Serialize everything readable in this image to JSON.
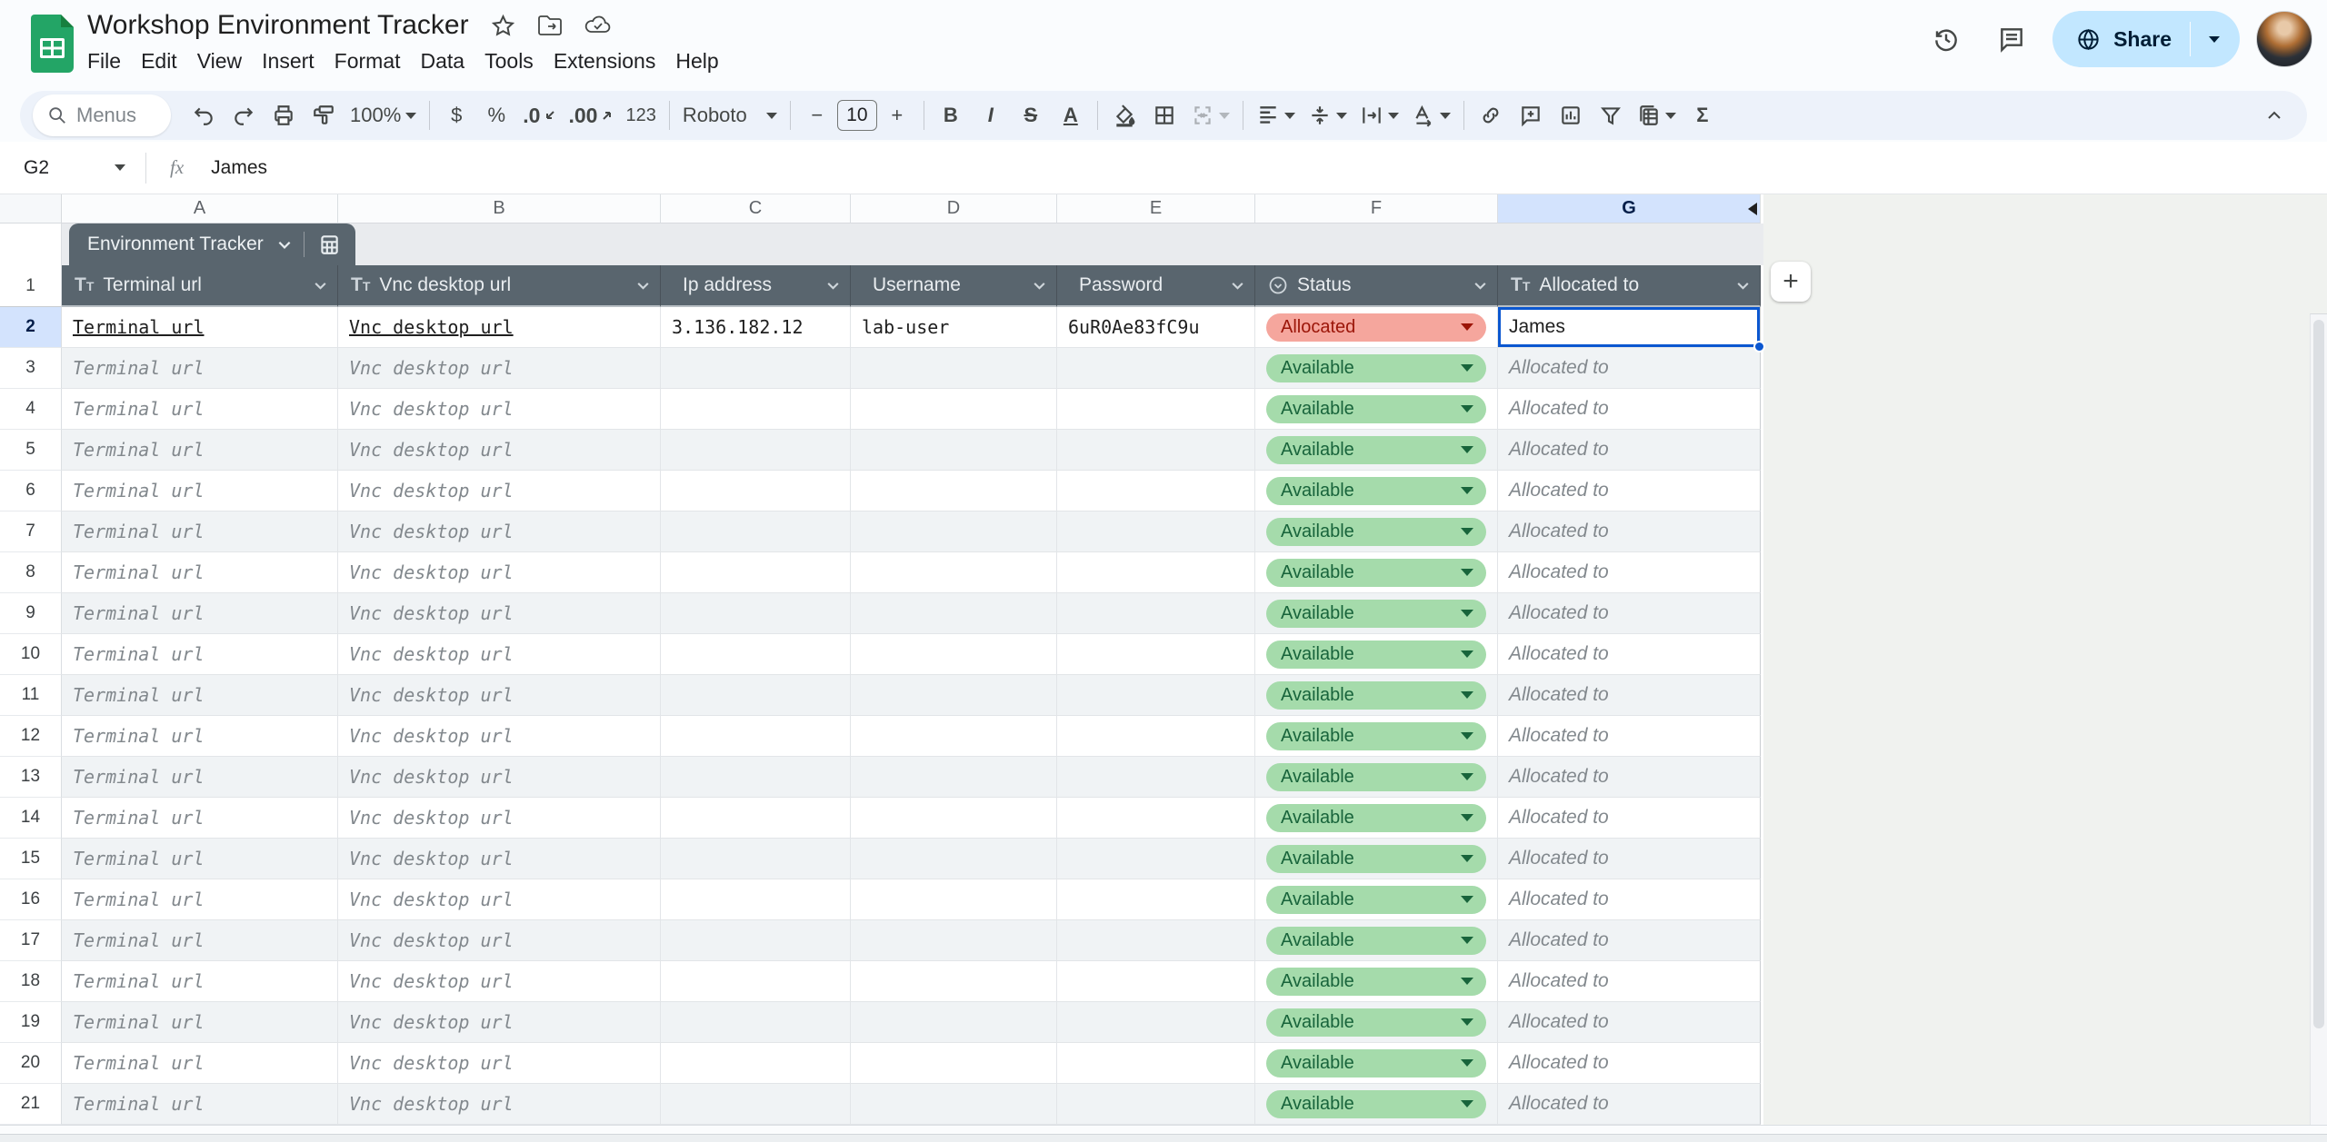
{
  "app": {
    "title": "Workshop Environment Tracker",
    "menu_items": [
      "File",
      "Edit",
      "View",
      "Insert",
      "Format",
      "Data",
      "Tools",
      "Extensions",
      "Help"
    ],
    "share_label": "Share"
  },
  "toolbar": {
    "search_placeholder": "Menus",
    "zoom_value": "100%",
    "dollar": "$",
    "percent": "%",
    "decrease_decimals": ".0",
    "increase_decimals": ".00",
    "number_format": "123",
    "font_name": "Roboto",
    "font_size": "10",
    "minus": "−",
    "plus": "+",
    "bold": "B",
    "italic": "I",
    "strikethrough": "S",
    "text_color": "A",
    "functions": "Σ"
  },
  "formula_bar": {
    "cell_ref": "G2",
    "fx_label": "fx",
    "value": "James"
  },
  "sheet": {
    "table_name": "Environment Tracker",
    "column_letters": [
      "A",
      "B",
      "C",
      "D",
      "E",
      "F",
      "G"
    ],
    "active_column": "G",
    "active_row": 2,
    "header_row_number": "1",
    "add_column_label": "+",
    "columns": [
      {
        "label": "Terminal url",
        "type_icon": "text"
      },
      {
        "label": "Vnc desktop url",
        "type_icon": "text"
      },
      {
        "label": "Ip address",
        "type_icon": "none"
      },
      {
        "label": "Username",
        "type_icon": "none"
      },
      {
        "label": "Password",
        "type_icon": "none"
      },
      {
        "label": "Status",
        "type_icon": "dropdown"
      },
      {
        "label": "Allocated to",
        "type_icon": "text"
      }
    ],
    "rows": [
      {
        "n": 2,
        "terminal": "Terminal url",
        "vnc": "Vnc desktop url",
        "ip": "3.136.182.12",
        "username": "lab-user",
        "password": "6uR0Ae83fC9u",
        "status": "Allocated",
        "allocated": "James",
        "links": true,
        "placeholder": false
      },
      {
        "n": 3,
        "terminal": "Terminal url",
        "vnc": "Vnc desktop url",
        "ip": "",
        "username": "",
        "password": "",
        "status": "Available",
        "allocated": "Allocated to",
        "links": false,
        "placeholder": true
      },
      {
        "n": 4,
        "terminal": "Terminal url",
        "vnc": "Vnc desktop url",
        "ip": "",
        "username": "",
        "password": "",
        "status": "Available",
        "allocated": "Allocated to",
        "links": false,
        "placeholder": true
      },
      {
        "n": 5,
        "terminal": "Terminal url",
        "vnc": "Vnc desktop url",
        "ip": "",
        "username": "",
        "password": "",
        "status": "Available",
        "allocated": "Allocated to",
        "links": false,
        "placeholder": true
      },
      {
        "n": 6,
        "terminal": "Terminal url",
        "vnc": "Vnc desktop url",
        "ip": "",
        "username": "",
        "password": "",
        "status": "Available",
        "allocated": "Allocated to",
        "links": false,
        "placeholder": true
      },
      {
        "n": 7,
        "terminal": "Terminal url",
        "vnc": "Vnc desktop url",
        "ip": "",
        "username": "",
        "password": "",
        "status": "Available",
        "allocated": "Allocated to",
        "links": false,
        "placeholder": true
      },
      {
        "n": 8,
        "terminal": "Terminal url",
        "vnc": "Vnc desktop url",
        "ip": "",
        "username": "",
        "password": "",
        "status": "Available",
        "allocated": "Allocated to",
        "links": false,
        "placeholder": true
      },
      {
        "n": 9,
        "terminal": "Terminal url",
        "vnc": "Vnc desktop url",
        "ip": "",
        "username": "",
        "password": "",
        "status": "Available",
        "allocated": "Allocated to",
        "links": false,
        "placeholder": true
      },
      {
        "n": 10,
        "terminal": "Terminal url",
        "vnc": "Vnc desktop url",
        "ip": "",
        "username": "",
        "password": "",
        "status": "Available",
        "allocated": "Allocated to",
        "links": false,
        "placeholder": true
      },
      {
        "n": 11,
        "terminal": "Terminal url",
        "vnc": "Vnc desktop url",
        "ip": "",
        "username": "",
        "password": "",
        "status": "Available",
        "allocated": "Allocated to",
        "links": false,
        "placeholder": true
      },
      {
        "n": 12,
        "terminal": "Terminal url",
        "vnc": "Vnc desktop url",
        "ip": "",
        "username": "",
        "password": "",
        "status": "Available",
        "allocated": "Allocated to",
        "links": false,
        "placeholder": true
      },
      {
        "n": 13,
        "terminal": "Terminal url",
        "vnc": "Vnc desktop url",
        "ip": "",
        "username": "",
        "password": "",
        "status": "Available",
        "allocated": "Allocated to",
        "links": false,
        "placeholder": true
      },
      {
        "n": 14,
        "terminal": "Terminal url",
        "vnc": "Vnc desktop url",
        "ip": "",
        "username": "",
        "password": "",
        "status": "Available",
        "allocated": "Allocated to",
        "links": false,
        "placeholder": true
      },
      {
        "n": 15,
        "terminal": "Terminal url",
        "vnc": "Vnc desktop url",
        "ip": "",
        "username": "",
        "password": "",
        "status": "Available",
        "allocated": "Allocated to",
        "links": false,
        "placeholder": true
      },
      {
        "n": 16,
        "terminal": "Terminal url",
        "vnc": "Vnc desktop url",
        "ip": "",
        "username": "",
        "password": "",
        "status": "Available",
        "allocated": "Allocated to",
        "links": false,
        "placeholder": true
      },
      {
        "n": 17,
        "terminal": "Terminal url",
        "vnc": "Vnc desktop url",
        "ip": "",
        "username": "",
        "password": "",
        "status": "Available",
        "allocated": "Allocated to",
        "links": false,
        "placeholder": true
      },
      {
        "n": 18,
        "terminal": "Terminal url",
        "vnc": "Vnc desktop url",
        "ip": "",
        "username": "",
        "password": "",
        "status": "Available",
        "allocated": "Allocated to",
        "links": false,
        "placeholder": true
      },
      {
        "n": 19,
        "terminal": "Terminal url",
        "vnc": "Vnc desktop url",
        "ip": "",
        "username": "",
        "password": "",
        "status": "Available",
        "allocated": "Allocated to",
        "links": false,
        "placeholder": true
      },
      {
        "n": 20,
        "terminal": "Terminal url",
        "vnc": "Vnc desktop url",
        "ip": "",
        "username": "",
        "password": "",
        "status": "Available",
        "allocated": "Allocated to",
        "links": false,
        "placeholder": true
      },
      {
        "n": 21,
        "terminal": "Terminal url",
        "vnc": "Vnc desktop url",
        "ip": "",
        "username": "",
        "password": "",
        "status": "Available",
        "allocated": "Allocated to",
        "links": false,
        "placeholder": true
      }
    ]
  },
  "colors": {
    "accent_blue": "#0b57d0",
    "selection_fill": "#d3e3fd",
    "table_header_bg": "#59656e",
    "banding_row_bg": "#f0f3f5",
    "allocated_bg": "#f5a69d",
    "allocated_text": "#9b1508",
    "available_bg": "#a5dbab",
    "available_text": "#18643b",
    "share_pill_bg": "#c2e7ff",
    "share_text": "#001d35",
    "toolbar_bg": "#edf2fa",
    "beyond_bg": "#f0f2ef",
    "placeholder_text": "#82888d"
  }
}
